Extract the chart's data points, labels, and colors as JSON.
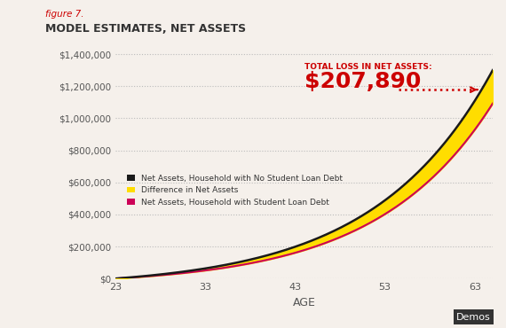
{
  "title_italic": "figure 7.",
  "title_main": "MODEL ESTIMATES, NET ASSETS",
  "xlabel": "AGE",
  "ylabel": "",
  "age_min": 23,
  "age_max": 65,
  "ylim": [
    0,
    1450000
  ],
  "yticks": [
    0,
    200000,
    400000,
    600000,
    800000,
    1000000,
    1200000,
    1400000
  ],
  "ytick_labels": [
    "$0",
    "$200,000",
    "$400,000",
    "$600,000",
    "$800,000",
    "$1,000,000",
    "$1,200,000",
    "$1,400,000"
  ],
  "xticks": [
    23,
    33,
    43,
    53,
    63
  ],
  "xtick_labels": [
    "23",
    "33",
    "43",
    "53",
    "63"
  ],
  "annotation_label": "TOTAL LOSS IN NET ASSETS:",
  "annotation_value": "$207,890",
  "annotation_color": "#cc0000",
  "arrow_color": "#cc0000",
  "background_color": "#f5f0eb",
  "line_no_debt_color": "#1a1a1a",
  "fill_color": "#ffdd00",
  "line_with_debt_color": "#cc0057",
  "dotted_line_color": "#cc0000",
  "legend_labels": [
    "Net Assets, Household with No Student Loan Debt",
    "Difference in Net Assets",
    "Net Assets, Household with Student Loan Debt"
  ],
  "legend_colors": [
    "#1a1a1a",
    "#ffdd00",
    "#cc0057"
  ],
  "demos_text": "Demos",
  "title_italic_color": "#cc0000",
  "title_main_color": "#333333"
}
